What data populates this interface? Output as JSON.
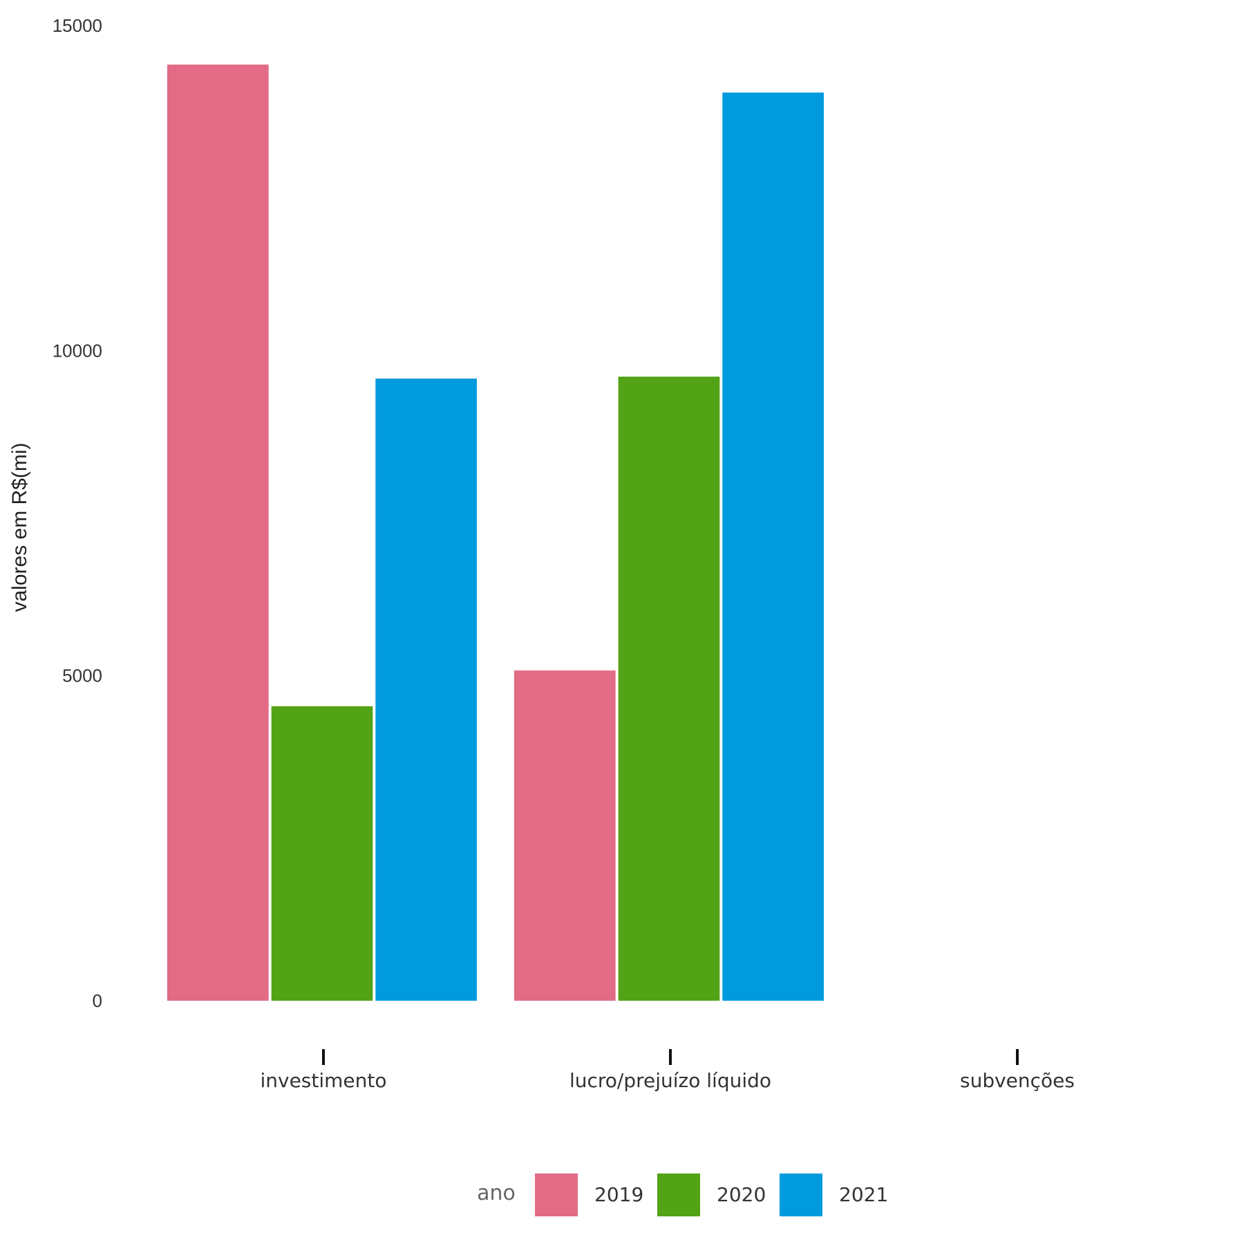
{
  "chart_data": {
    "type": "bar",
    "title": "",
    "xlabel": "",
    "ylabel": "valores em R$(mi)",
    "ylim": [
      0,
      15000
    ],
    "yticks": [
      0,
      5000,
      10000,
      15000
    ],
    "grid": false,
    "legend_position": "bottom",
    "legend_title": "ano",
    "categories": [
      "investimento",
      "lucro/prejuízo líquido",
      "subvenções"
    ],
    "series": [
      {
        "name": "2019",
        "color": "#e26b86",
        "values": [
          14400,
          5080,
          0
        ]
      },
      {
        "name": "2020",
        "color": "#52a315",
        "values": [
          4530,
          9600,
          0
        ]
      },
      {
        "name": "2021",
        "color": "#009bdf",
        "values": [
          9570,
          13970,
          0
        ]
      }
    ]
  }
}
